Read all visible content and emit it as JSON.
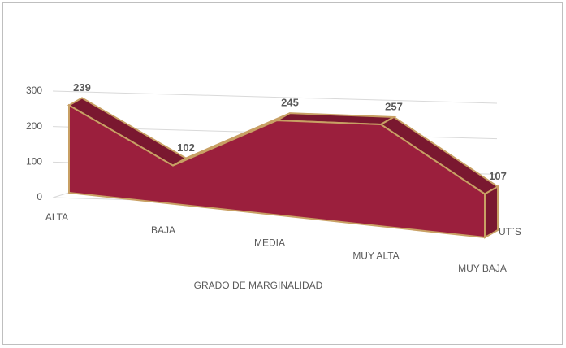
{
  "chart_data": {
    "type": "area3d",
    "x_label": "GRADO DE MARGINALIDAD",
    "categories": [
      "ALTA",
      "BAJA",
      "MEDIA",
      "MUY ALTA",
      "MUY BAJA"
    ],
    "series": [
      {
        "name": "UT`S",
        "color": "#9b1f3d",
        "values": [
          239,
          102,
          245,
          257,
          107
        ]
      }
    ],
    "ylim": [
      0,
      300
    ],
    "yticks": [
      0,
      100,
      200,
      300
    ],
    "grid": true
  }
}
